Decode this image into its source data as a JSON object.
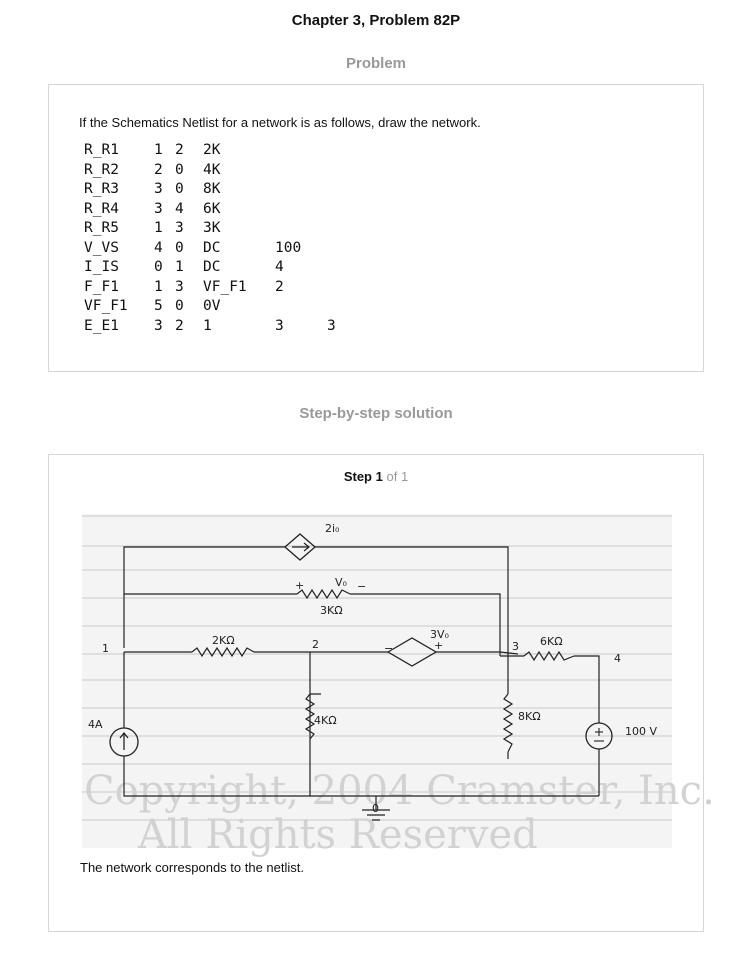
{
  "header": {
    "title": "Chapter 3, Problem 82P"
  },
  "problem": {
    "section_title": "Problem",
    "question": "If the Schematics Netlist for a network is as follows, draw the network.",
    "netlist": [
      [
        "R_R1",
        "1",
        "2",
        "2K",
        "",
        ""
      ],
      [
        "R_R2",
        "2",
        "0",
        "4K",
        "",
        ""
      ],
      [
        "R_R3",
        "3",
        "0",
        "8K",
        "",
        ""
      ],
      [
        "R_R4",
        "3",
        "4",
        "6K",
        "",
        ""
      ],
      [
        "R_R5",
        "1",
        "3",
        "3K",
        "",
        ""
      ],
      [
        "V_VS",
        "4",
        "0",
        "DC",
        "100",
        ""
      ],
      [
        "I_IS",
        "0",
        "1",
        "DC",
        "4",
        ""
      ],
      [
        "F_F1",
        "1",
        "3",
        "VF_F1",
        "2",
        ""
      ],
      [
        "VF_F1",
        "5",
        "0",
        "0V",
        "",
        ""
      ],
      [
        "E_E1",
        "3",
        "2",
        "1",
        "3",
        "3"
      ]
    ]
  },
  "solution": {
    "section_title": "Step-by-step solution",
    "step_word": "Step",
    "step_number": "1",
    "step_of": "of 1",
    "conclusion": "The network corresponds to the netlist.",
    "figure": {
      "labels": {
        "dep_current": "2i₀",
        "vo": "V₀",
        "plus": "+",
        "minus": "−",
        "r5": "3KΩ",
        "r1": "2KΩ",
        "node2": "2",
        "dep_voltage": "3V₀",
        "node3": "3",
        "r4": "6KΩ",
        "node4": "4",
        "node1": "1",
        "isrc": "4A",
        "r2": "4KΩ",
        "r3": "8KΩ",
        "vsrc": "100 V",
        "node0": "0",
        "watermark1": "Copyright, 2004 Cramster, Inc.",
        "watermark2": "All Rights Reserved"
      }
    }
  }
}
